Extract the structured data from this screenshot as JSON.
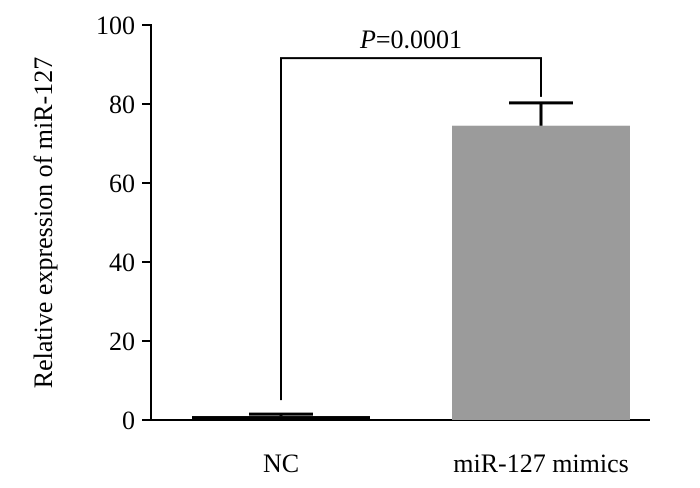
{
  "chart_data": {
    "type": "bar",
    "title": "",
    "xlabel": "",
    "ylabel": "Relative expression of miR-127",
    "categories": [
      "NC",
      "miR-127 mimics"
    ],
    "values": [
      1.0,
      74.5
    ],
    "error": [
      0.5,
      5.8
    ],
    "ylim": [
      0,
      100
    ],
    "yticks": [
      "0",
      "20",
      "40",
      "60",
      "80",
      "100"
    ],
    "bar_colors": [
      "#000000",
      "#9b9b9b"
    ],
    "grid": false,
    "legend": "none",
    "annotation": {
      "p_prefix": "P",
      "p_value": "=0.0001",
      "from": "NC",
      "to": "miR-127 mimics",
      "y": 92
    }
  }
}
